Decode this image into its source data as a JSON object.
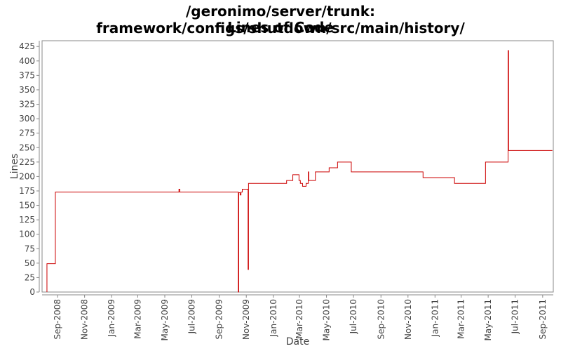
{
  "chart_data": {
    "type": "line",
    "title_line1": "/geronimo/server/trunk: framework/configs/shutdown/src/main/history/",
    "title_line2": "Lines of Code",
    "xlabel": "Date",
    "ylabel": "Lines",
    "ylim": [
      0,
      435
    ],
    "yticks": [
      0,
      25,
      50,
      75,
      100,
      125,
      150,
      175,
      200,
      225,
      250,
      275,
      300,
      325,
      350,
      375,
      400,
      425
    ],
    "xlim": [
      "2008-07-28",
      "2011-09-25"
    ],
    "xticks": [
      {
        "date": "2008-09-01",
        "label": "Sep-2008"
      },
      {
        "date": "2008-11-01",
        "label": "Nov-2008"
      },
      {
        "date": "2009-01-01",
        "label": "Jan-2009"
      },
      {
        "date": "2009-03-01",
        "label": "Mar-2009"
      },
      {
        "date": "2009-05-01",
        "label": "May-2009"
      },
      {
        "date": "2009-07-01",
        "label": "Jul-2009"
      },
      {
        "date": "2009-09-01",
        "label": "Sep-2009"
      },
      {
        "date": "2009-11-01",
        "label": "Nov-2009"
      },
      {
        "date": "2010-01-01",
        "label": "Jan-2010"
      },
      {
        "date": "2010-03-01",
        "label": "Mar-2010"
      },
      {
        "date": "2010-05-01",
        "label": "May-2010"
      },
      {
        "date": "2010-07-01",
        "label": "Jul-2010"
      },
      {
        "date": "2010-09-01",
        "label": "Sep-2010"
      },
      {
        "date": "2010-11-01",
        "label": "Nov-2010"
      },
      {
        "date": "2011-01-01",
        "label": "Jan-2011"
      },
      {
        "date": "2011-03-01",
        "label": "Mar-2011"
      },
      {
        "date": "2011-05-01",
        "label": "May-2011"
      },
      {
        "date": "2011-07-01",
        "label": "Jul-2011"
      },
      {
        "date": "2011-09-01",
        "label": "Sep-2011"
      }
    ],
    "grid": false,
    "line_color": "#cc0000",
    "series": [
      {
        "points": [
          [
            "2008-08-08",
            0
          ],
          [
            "2008-08-08",
            49
          ],
          [
            "2008-08-27",
            49
          ],
          [
            "2008-08-27",
            173
          ],
          [
            "2009-06-02",
            173
          ],
          [
            "2009-06-02",
            178
          ],
          [
            "2009-06-04",
            178
          ],
          [
            "2009-06-04",
            173
          ],
          [
            "2009-10-14",
            173
          ],
          [
            "2009-10-14",
            0
          ],
          [
            "2009-10-15",
            0
          ],
          [
            "2009-10-15",
            172
          ],
          [
            "2009-10-18",
            172
          ],
          [
            "2009-10-18",
            168
          ],
          [
            "2009-10-20",
            168
          ],
          [
            "2009-10-20",
            173
          ],
          [
            "2009-10-23",
            173
          ],
          [
            "2009-10-23",
            178
          ],
          [
            "2009-11-05",
            178
          ],
          [
            "2009-11-05",
            39
          ],
          [
            "2009-11-06",
            39
          ],
          [
            "2009-11-06",
            188
          ],
          [
            "2010-01-31",
            188
          ],
          [
            "2010-01-31",
            193
          ],
          [
            "2010-02-14",
            193
          ],
          [
            "2010-02-14",
            203
          ],
          [
            "2010-02-28",
            203
          ],
          [
            "2010-02-28",
            193
          ],
          [
            "2010-03-03",
            193
          ],
          [
            "2010-03-03",
            188
          ],
          [
            "2010-03-08",
            188
          ],
          [
            "2010-03-08",
            183
          ],
          [
            "2010-03-16",
            183
          ],
          [
            "2010-03-16",
            188
          ],
          [
            "2010-03-21",
            188
          ],
          [
            "2010-03-21",
            208
          ],
          [
            "2010-03-22",
            208
          ],
          [
            "2010-03-22",
            193
          ],
          [
            "2010-04-06",
            193
          ],
          [
            "2010-04-06",
            208
          ],
          [
            "2010-05-07",
            208
          ],
          [
            "2010-05-07",
            215
          ],
          [
            "2010-05-26",
            215
          ],
          [
            "2010-05-26",
            225
          ],
          [
            "2010-06-26",
            225
          ],
          [
            "2010-06-26",
            208
          ],
          [
            "2010-12-05",
            208
          ],
          [
            "2010-12-05",
            198
          ],
          [
            "2011-02-14",
            198
          ],
          [
            "2011-02-14",
            188
          ],
          [
            "2011-04-25",
            188
          ],
          [
            "2011-04-25",
            225
          ],
          [
            "2011-06-15",
            225
          ],
          [
            "2011-06-15",
            418
          ],
          [
            "2011-06-16",
            418
          ],
          [
            "2011-06-16",
            245
          ],
          [
            "2011-09-23",
            245
          ]
        ]
      }
    ]
  }
}
